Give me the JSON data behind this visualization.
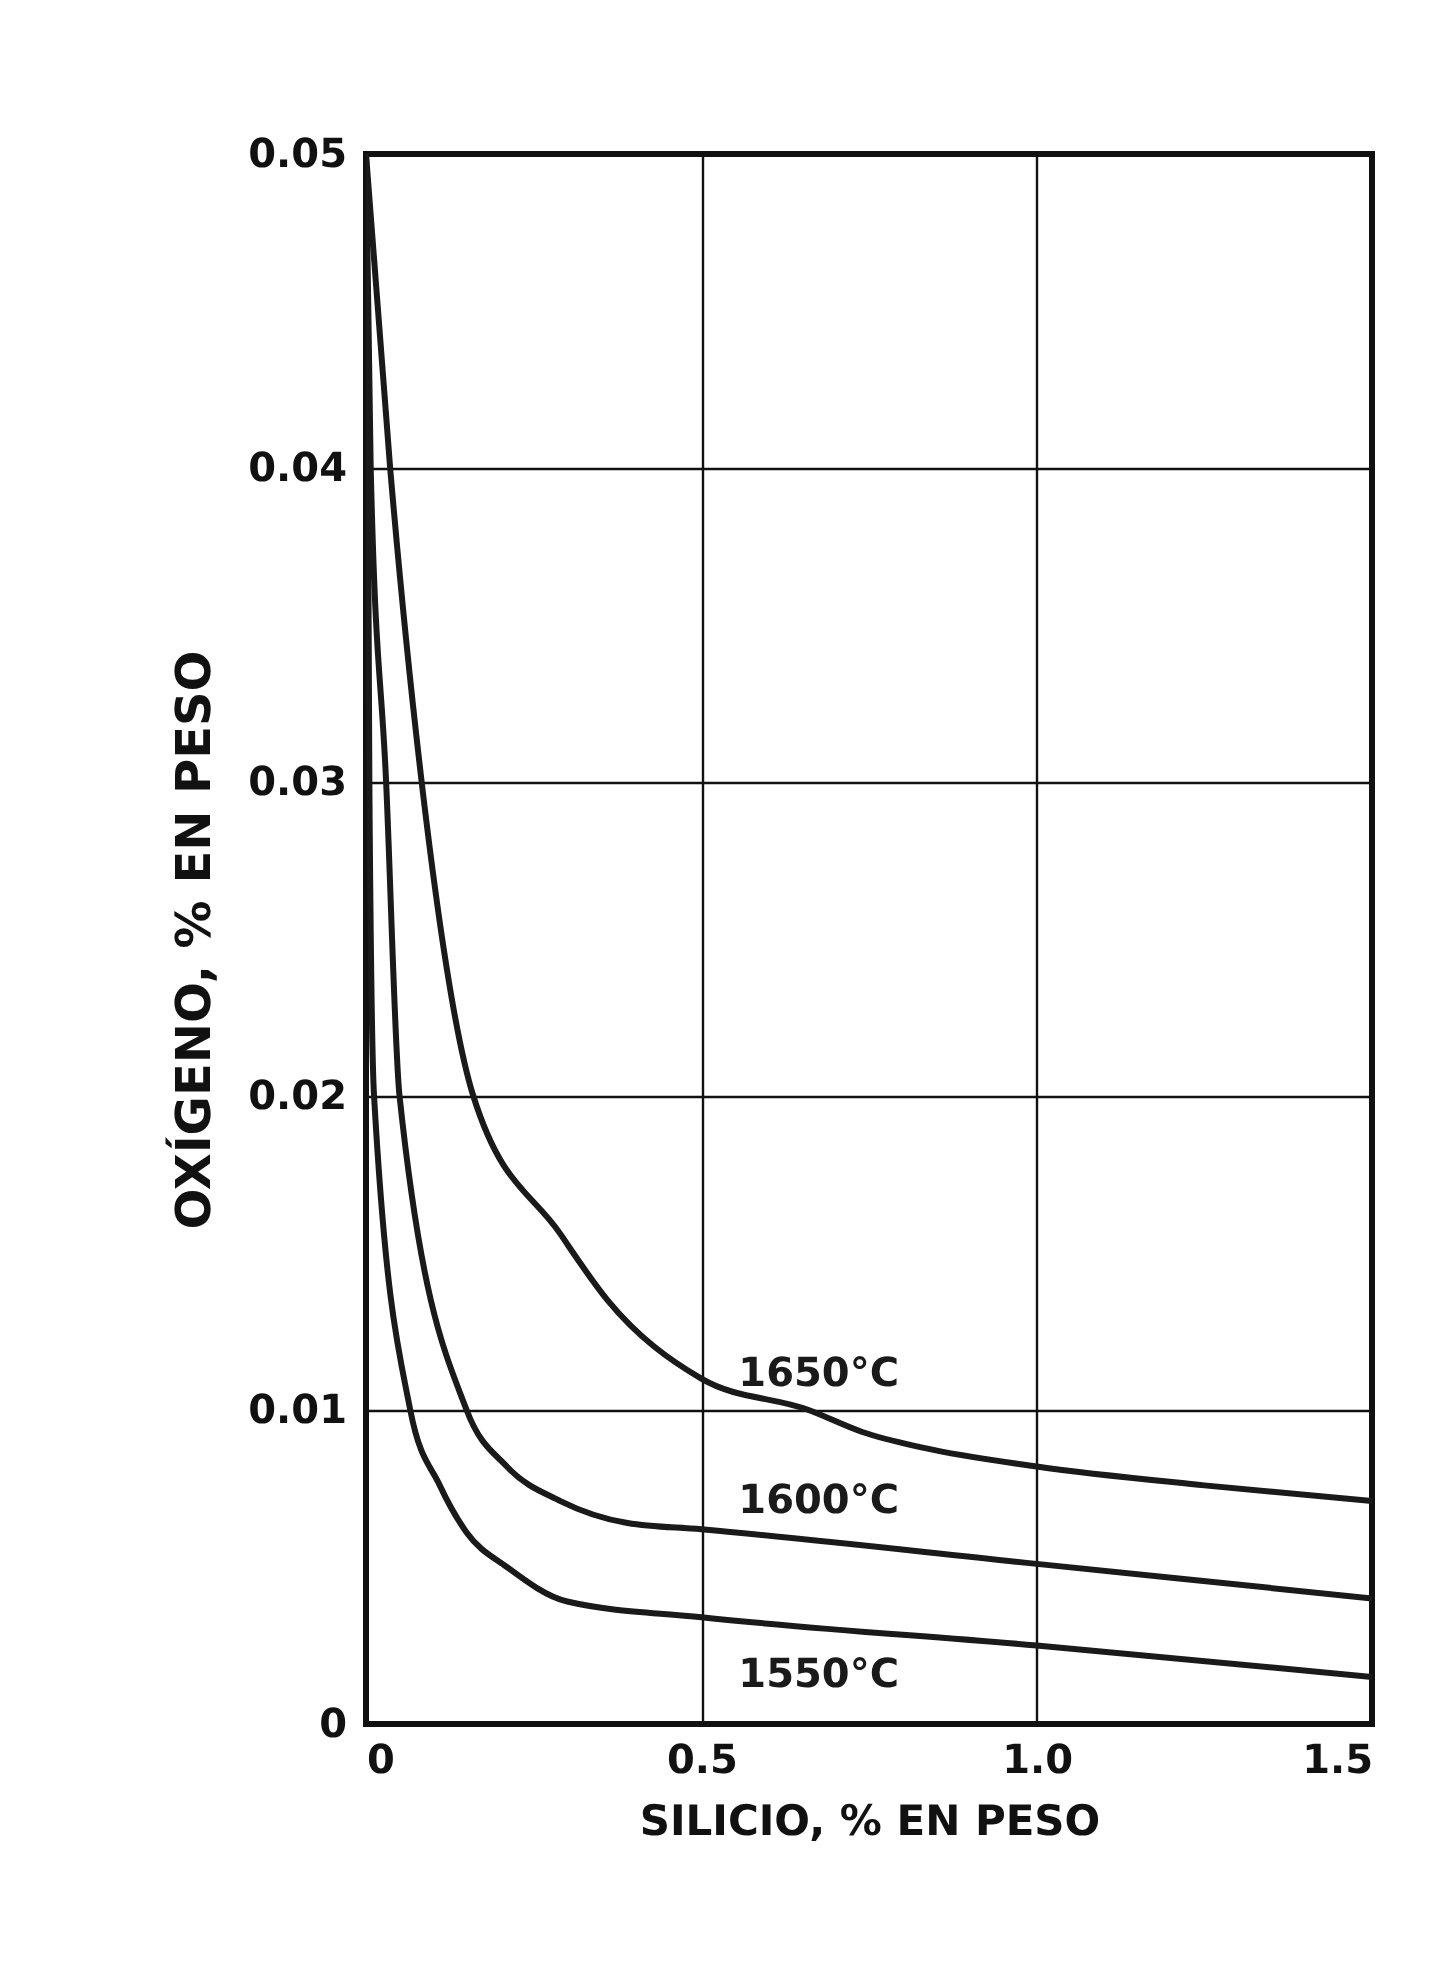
{
  "chart_data": {
    "type": "line",
    "xlabel": "SILICIO, % EN PESO",
    "ylabel": "OXÍGENO, % EN PESO",
    "series": [
      {
        "name": "1650°C",
        "color": "#1a1a1a",
        "x": [
          0,
          0.036,
          0.083,
          0.16,
          0.29,
          0.36,
          0.5,
          0.66,
          0.74,
          0.83,
          1.0,
          1.25,
          1.5
        ],
        "values": [
          0.05,
          0.04,
          0.03,
          0.02,
          0.0156,
          0.0135,
          0.011,
          0.01,
          0.0093,
          0.0088,
          0.0082,
          0.0076,
          0.0071
        ]
      },
      {
        "name": "1600°C",
        "color": "#1a1a1a",
        "x": [
          0,
          0.007,
          0.03,
          0.05,
          0.15,
          0.21,
          0.29,
          0.39,
          0.5,
          1.0,
          1.5
        ],
        "values": [
          0.05,
          0.04,
          0.03,
          0.02,
          0.01,
          0.0082,
          0.0071,
          0.0064,
          0.0062,
          0.0051,
          0.004
        ]
      },
      {
        "name": "1550°C",
        "color": "#1a1a1a",
        "x": [
          0,
          0.003,
          0.005,
          0.012,
          0.066,
          0.11,
          0.15,
          0.21,
          0.3,
          0.5,
          1.0,
          1.5
        ],
        "values": [
          0.05,
          0.04,
          0.03,
          0.02,
          0.01,
          0.0076,
          0.0061,
          0.005,
          0.0039,
          0.0034,
          0.0025,
          0.0015
        ]
      }
    ],
    "xlim": [
      0,
      1.5
    ],
    "xticks": [
      0,
      0.5,
      {
        "value": 1,
        "label": "1.0"
      },
      1.5
    ],
    "ylim": [
      0,
      0.05
    ],
    "yticks": [
      0,
      0.01,
      0.02,
      0.03,
      0.04,
      0.05
    ],
    "grid": true,
    "marker": "none",
    "line_style": "solid"
  }
}
